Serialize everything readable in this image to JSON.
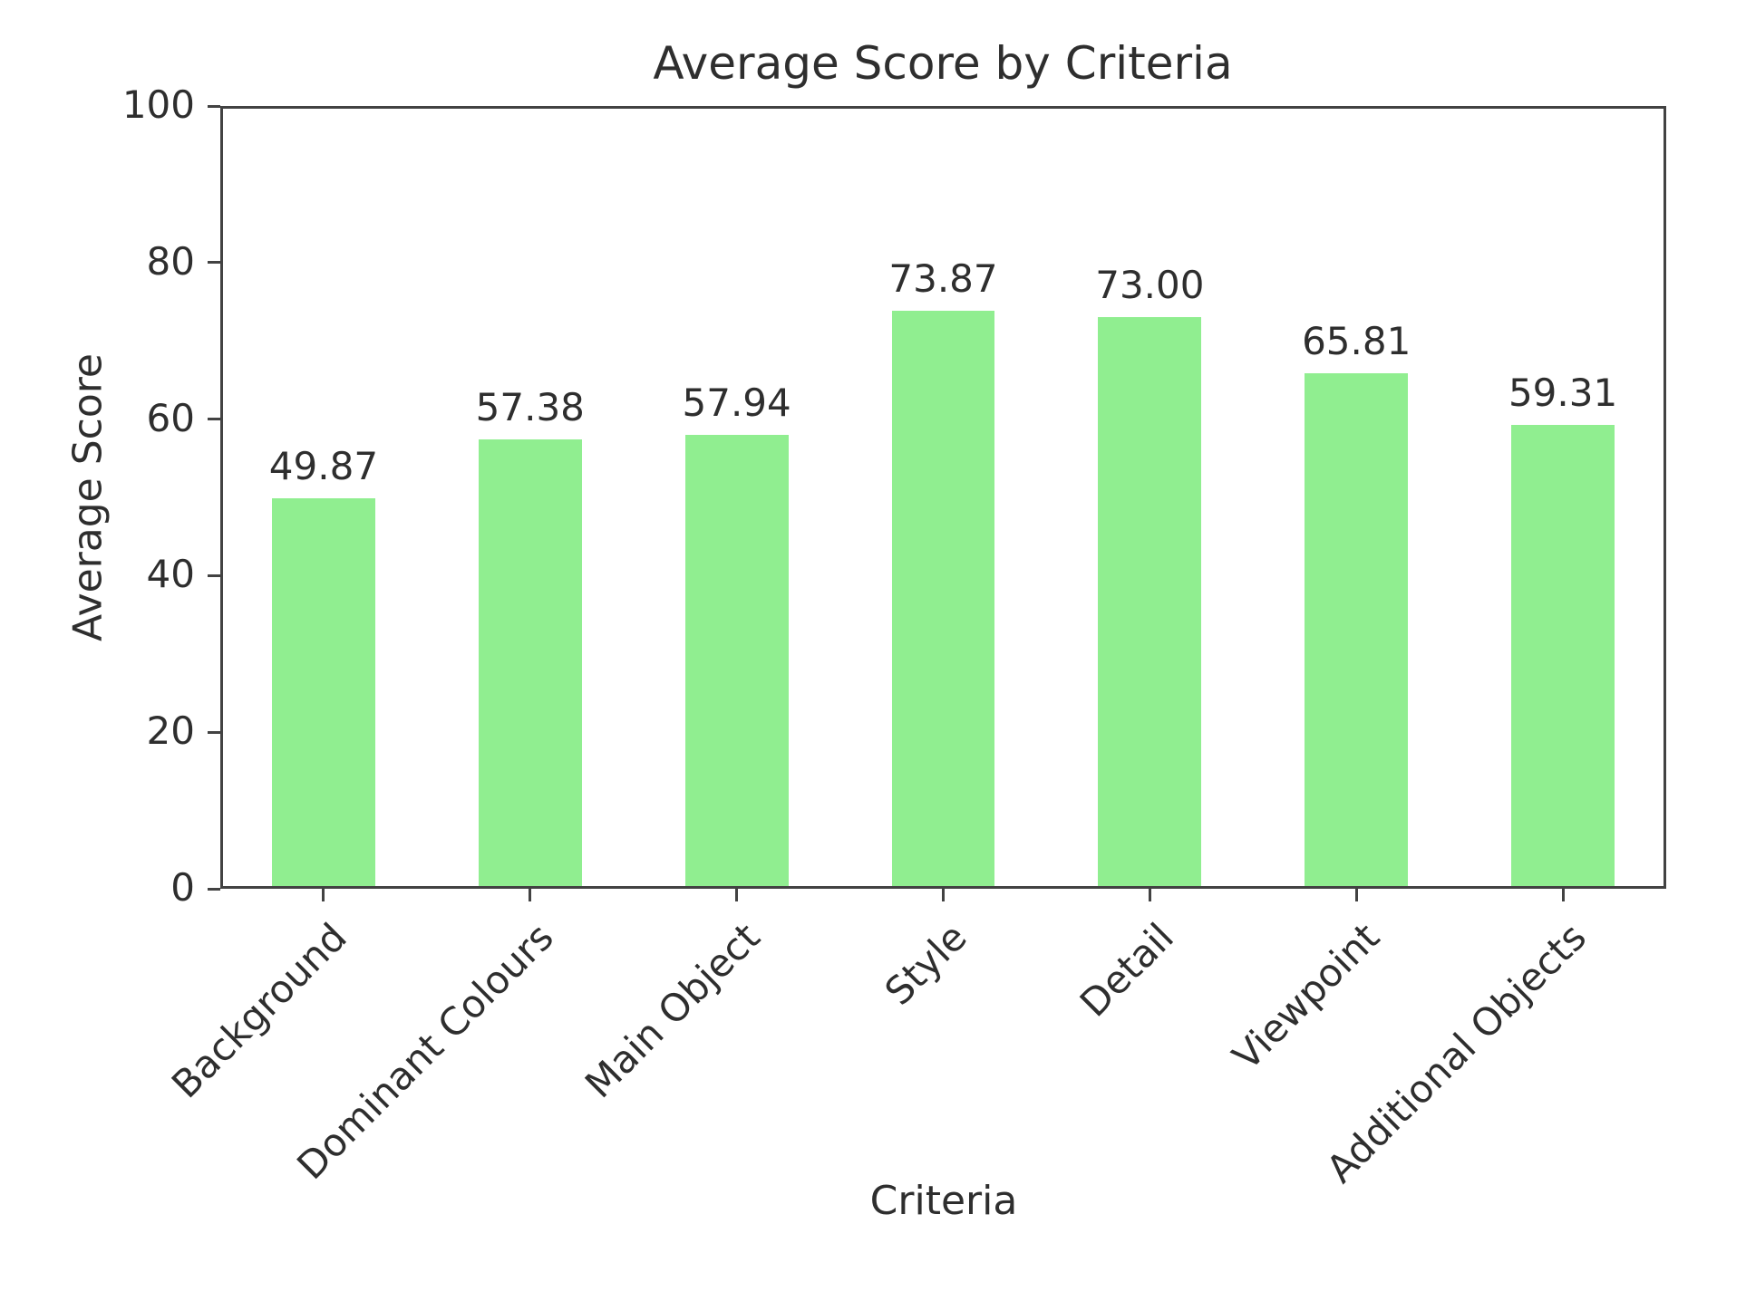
{
  "chart_data": {
    "type": "bar",
    "title": "Average Score by Criteria",
    "xlabel": "Criteria",
    "ylabel": "Average Score",
    "categories": [
      "Background",
      "Dominant Colours",
      "Main Object",
      "Style",
      "Detail",
      "Viewpoint",
      "Additional Objects"
    ],
    "values": [
      49.87,
      57.38,
      57.94,
      73.87,
      73.0,
      65.81,
      59.31
    ],
    "value_labels": [
      "49.87",
      "57.38",
      "57.94",
      "73.87",
      "73.00",
      "65.81",
      "59.31"
    ],
    "ylim": [
      0,
      100
    ],
    "yticks": [
      0,
      20,
      40,
      60,
      80,
      100
    ],
    "ytick_labels": [
      "0",
      "20",
      "40",
      "60",
      "80",
      "100"
    ],
    "bar_color": "#90ee90",
    "bar_width_fraction": 0.5,
    "x_label_rotation_deg": 45,
    "grid": false,
    "legend_position": "none",
    "text_color": "#2e2e2e",
    "axis_color": "#424242",
    "background_color": "#ffffff"
  }
}
